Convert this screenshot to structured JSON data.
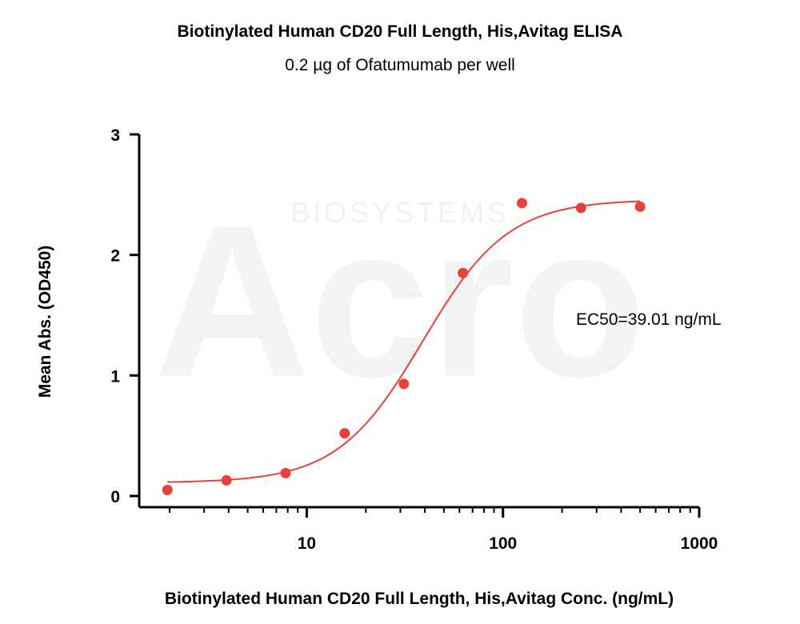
{
  "chart_data": {
    "type": "scatter",
    "title": "Biotinylated Human CD20 Full Length, His,Avitag ELISA",
    "subtitle": "0.2 µg of Ofatumumab per well",
    "xlabel": "Biotinylated Human CD20 Full Length, His,Avitag Conc. (ng/mL)",
    "ylabel": "Mean Abs. (OD450)",
    "x_scale": "log",
    "xlim": [
      1.4,
      1000
    ],
    "ylim": [
      0,
      3
    ],
    "x_ticks": [
      10,
      100,
      1000
    ],
    "x_tick_labels": [
      "10",
      "100",
      "1000"
    ],
    "y_ticks": [
      0,
      1,
      2,
      3
    ],
    "y_tick_labels": [
      "0",
      "1",
      "2",
      "3"
    ],
    "grid": false,
    "series": [
      {
        "color": "#e8413c",
        "x": [
          1.95,
          3.9,
          7.8,
          15.6,
          31.25,
          62.5,
          125,
          250,
          500
        ],
        "y": [
          0.05,
          0.13,
          0.19,
          0.52,
          0.93,
          1.85,
          2.43,
          2.39,
          2.4
        ],
        "fit": "4PL",
        "fit_params": {
          "bottom": 0.11,
          "top": 2.46,
          "ec50": 39.01,
          "hill": 2.0
        }
      }
    ],
    "annotations": [
      {
        "text": "EC50=39.01 ng/mL"
      }
    ]
  },
  "watermark": {
    "logo_text": "Acro",
    "sub_text": "BIOSYSTEMS"
  }
}
